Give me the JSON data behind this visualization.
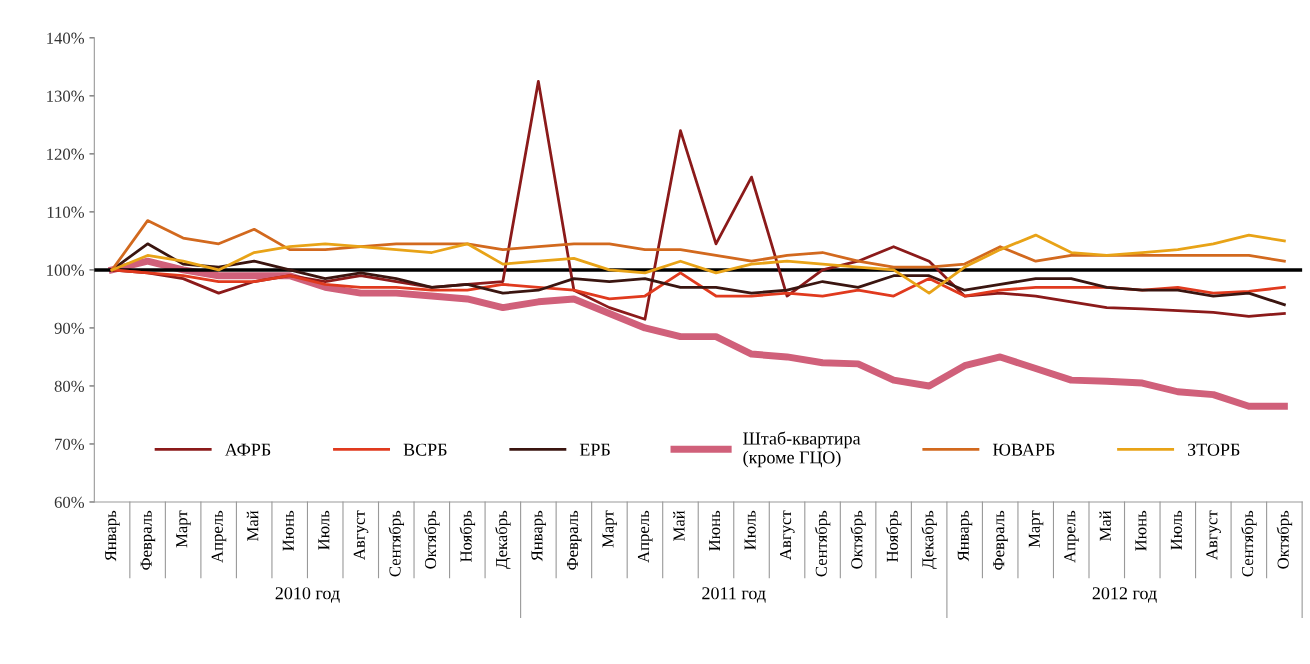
{
  "chart_data": {
    "type": "line",
    "categories": [
      "Январь",
      "Февраль",
      "Март",
      "Апрель",
      "Май",
      "Июнь",
      "Июль",
      "Август",
      "Сентябрь",
      "Октябрь",
      "Ноябрь",
      "Декабрь",
      "Январь",
      "Февраль",
      "Март",
      "Апрель",
      "Май",
      "Июнь",
      "Июль",
      "Август",
      "Сентябрь",
      "Октябрь",
      "Ноябрь",
      "Декабрь",
      "Январь",
      "Февраль",
      "Март",
      "Апрель",
      "Май",
      "Июнь",
      "Июль",
      "Август",
      "Сентябрь",
      "Октябрь"
    ],
    "series": [
      {
        "name": "АФРБ",
        "color": "#8b1a1a",
        "values": [
          100,
          99.5,
          98.5,
          96,
          98,
          99,
          98,
          99,
          98,
          97,
          97.5,
          98,
          132.5,
          96.5,
          93.5,
          91.5,
          124,
          104.5,
          116,
          95.5,
          100,
          101.5,
          104,
          101.5,
          95.5,
          96,
          95.5,
          94.5,
          93.5,
          93.3,
          93,
          92.7,
          92,
          92.5
        ]
      },
      {
        "name": "ВСРБ",
        "color": "#e03a1e",
        "values": [
          100,
          99.5,
          99,
          98,
          98,
          99,
          97.5,
          97,
          97,
          96.5,
          96.5,
          97.5,
          97,
          96.5,
          95,
          95.5,
          99.5,
          95.5,
          95.5,
          96,
          95.5,
          96.5,
          95.5,
          98.5,
          95.5,
          96.5,
          97,
          97,
          97,
          96.5,
          97,
          96,
          96.3,
          97
        ]
      },
      {
        "name": "ЕРБ",
        "color": "#3a1510",
        "values": [
          100,
          104.5,
          101,
          100.5,
          101.5,
          100,
          98.5,
          99.5,
          98.5,
          97,
          97.5,
          96,
          96.5,
          98.5,
          98,
          98.5,
          97,
          97,
          96,
          96.5,
          98,
          97,
          99,
          99,
          96.5,
          97.5,
          98.5,
          98.5,
          97,
          96.5,
          96.5,
          95.5,
          96,
          94
        ]
      },
      {
        "name": "Штаб-квартира\n(кроме ГЦО)",
        "color": "#d0607a",
        "values": [
          100,
          101.5,
          100,
          99,
          99,
          99,
          97,
          96,
          96,
          95.5,
          95,
          93.5,
          94.5,
          95,
          92.5,
          90,
          88.5,
          88.5,
          85.5,
          85,
          84,
          83.8,
          81,
          80,
          83.5,
          85,
          83,
          81,
          80.8,
          80.5,
          79,
          78.5,
          76.5,
          76.5
        ]
      },
      {
        "name": "ЮВАРБ",
        "color": "#d2691e",
        "values": [
          100,
          108.5,
          105.5,
          104.5,
          107,
          103.5,
          103.5,
          104,
          104.5,
          104.5,
          104.5,
          103.5,
          104,
          104.5,
          104.5,
          103.5,
          103.5,
          102.5,
          101.5,
          102.5,
          103,
          101.5,
          100.5,
          100.5,
          101,
          104,
          101.5,
          102.5,
          102.5,
          102.5,
          102.5,
          102.5,
          102.5,
          101.5
        ]
      },
      {
        "name": "ЗТОРБ",
        "color": "#e8a317",
        "values": [
          100,
          102.5,
          101.5,
          100,
          103,
          104,
          104.5,
          104,
          103.5,
          103,
          104.5,
          101,
          101.5,
          102,
          100,
          99.5,
          101.5,
          99.5,
          101,
          101.5,
          101,
          100.5,
          100,
          96,
          100.5,
          103.5,
          106,
          103,
          102.5,
          103,
          103.5,
          104.5,
          106,
          105
        ]
      }
    ],
    "ylim": [
      60,
      140
    ],
    "yticks": [
      {
        "value": 60,
        "label": "60%"
      },
      {
        "value": 70,
        "label": "70%"
      },
      {
        "value": 80,
        "label": "80%"
      },
      {
        "value": 90,
        "label": "90%"
      },
      {
        "value": 100,
        "label": "100%"
      },
      {
        "value": 110,
        "label": "110%"
      },
      {
        "value": 120,
        "label": "120%"
      },
      {
        "value": 130,
        "label": "130%"
      },
      {
        "value": 140,
        "label": "140%"
      }
    ],
    "ref_lines": [
      {
        "axis": "y",
        "value": 100,
        "color": "#000000"
      }
    ],
    "annotations": [
      "2010 год",
      "2011 год",
      "2012 год"
    ],
    "legend": "bottom",
    "grid": false,
    "marker": "none",
    "line_style": "solid"
  }
}
